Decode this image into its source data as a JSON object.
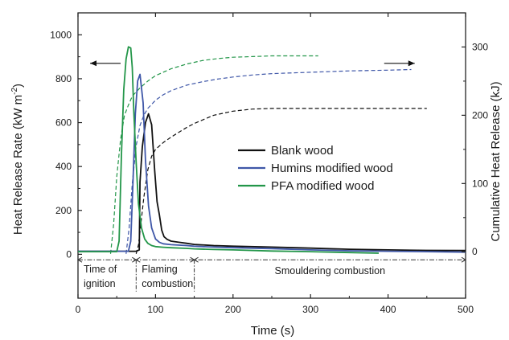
{
  "chart_data": {
    "type": "line",
    "xlabel": "Time (s)",
    "ylabel_left": "Heat Release Rate (kW m",
    "ylabel_left_sup": "-2",
    "ylabel_left_end": ")",
    "ylabel_right": "Cumulative Heat Release (kJ)",
    "xlim": [
      0,
      500
    ],
    "ylim_left": [
      -200,
      1100
    ],
    "ylim_right": [
      -68,
      350
    ],
    "x_ticks": [
      0,
      100,
      200,
      300,
      400,
      500
    ],
    "y_left_ticks": [
      0,
      200,
      400,
      600,
      800,
      1000
    ],
    "y_right_ticks": [
      0,
      100,
      200,
      300
    ],
    "grid": false,
    "legend_position": "center-right",
    "colors": {
      "blank": "#111111",
      "humins": "#3f57a8",
      "pfa": "#239649"
    },
    "series": [
      {
        "name": "Blank wood",
        "key": "blank",
        "axis": "left",
        "style": "solid",
        "x": [
          0,
          75,
          79,
          80,
          83,
          87,
          91,
          95,
          99,
          102,
          105,
          108,
          111,
          115,
          120,
          130,
          140,
          150,
          175,
          200,
          250,
          300,
          350,
          400,
          450,
          500
        ],
        "y": [
          14,
          14,
          20,
          330,
          490,
          600,
          640,
          590,
          380,
          240,
          180,
          110,
          80,
          68,
          60,
          55,
          50,
          45,
          40,
          37,
          33,
          28,
          23,
          20,
          18,
          17
        ]
      },
      {
        "name": "Humins modified wood",
        "key": "humins",
        "axis": "left",
        "style": "solid",
        "x": [
          0,
          65,
          68,
          71,
          74,
          77,
          80,
          84,
          87,
          91,
          95,
          100,
          105,
          110,
          120,
          140,
          150,
          175,
          200,
          250,
          300,
          350,
          400,
          450,
          500
        ],
        "y": [
          14,
          14,
          60,
          330,
          640,
          790,
          820,
          690,
          430,
          220,
          120,
          70,
          55,
          48,
          44,
          40,
          37,
          33,
          30,
          26,
          20,
          16,
          14,
          12,
          10
        ]
      },
      {
        "name": "PFA modified wood",
        "key": "pfa",
        "axis": "left",
        "style": "solid",
        "x": [
          0,
          50,
          53,
          56,
          59,
          62,
          65,
          68,
          70,
          72,
          75,
          78,
          82,
          86,
          90,
          95,
          100,
          110,
          120,
          140,
          150,
          175,
          200,
          250,
          300,
          350,
          388
        ],
        "y": [
          12,
          12,
          60,
          450,
          750,
          890,
          945,
          940,
          850,
          650,
          420,
          230,
          120,
          70,
          50,
          40,
          35,
          32,
          30,
          27,
          25,
          22,
          20,
          15,
          12,
          8,
          5
        ]
      },
      {
        "name": "Blank wood cumulative",
        "key": "blank",
        "axis": "right",
        "style": "dashed",
        "x": [
          75,
          78,
          81,
          85,
          90,
          95,
          100,
          110,
          120,
          130,
          140,
          150,
          175,
          200,
          225,
          250,
          300,
          350,
          400,
          450
        ],
        "y": [
          -3,
          10,
          40,
          80,
          120,
          140,
          150,
          160,
          168,
          175,
          182,
          188,
          200,
          206,
          209,
          210,
          210,
          210,
          210,
          210
        ]
      },
      {
        "name": "Humins modified wood cumulative",
        "key": "humins",
        "axis": "right",
        "style": "dashed",
        "x": [
          62,
          66,
          70,
          75,
          80,
          85,
          90,
          100,
          110,
          120,
          140,
          160,
          180,
          200,
          225,
          250,
          300,
          350,
          400,
          430
        ],
        "y": [
          -3,
          35,
          100,
          155,
          185,
          200,
          210,
          222,
          230,
          236,
          244,
          249,
          253,
          256,
          259,
          261,
          263,
          265,
          266,
          267
        ]
      },
      {
        "name": "PFA modified wood cumulative",
        "key": "pfa",
        "axis": "right",
        "style": "dashed",
        "x": [
          42,
          46,
          50,
          55,
          60,
          65,
          70,
          80,
          90,
          100,
          120,
          140,
          160,
          180,
          200,
          225,
          250,
          275,
          310
        ],
        "y": [
          -3,
          40,
          110,
          165,
          200,
          215,
          228,
          240,
          250,
          258,
          268,
          275,
          280,
          283,
          285,
          286,
          287,
          287,
          287
        ]
      }
    ],
    "legend": [
      "Blank wood",
      "Humins modified wood",
      "PFA modified wood"
    ],
    "phases": [
      {
        "label_lines": [
          "Time of",
          "ignition"
        ],
        "x_start": 0,
        "x_end": 75
      },
      {
        "label_lines": [
          "Flaming",
          "combustion"
        ],
        "x_start": 75,
        "x_end": 150
      },
      {
        "label_lines": [
          "Smouldering combustion"
        ],
        "x_start": 150,
        "x_end": 500
      }
    ],
    "annotations": [
      {
        "type": "arrow-left",
        "meaning": "HRR curves on left axis",
        "x": 55,
        "y": 870
      },
      {
        "type": "arrow-right",
        "meaning": "Cumulative curves on right axis",
        "x": 395,
        "y": 870
      }
    ]
  }
}
